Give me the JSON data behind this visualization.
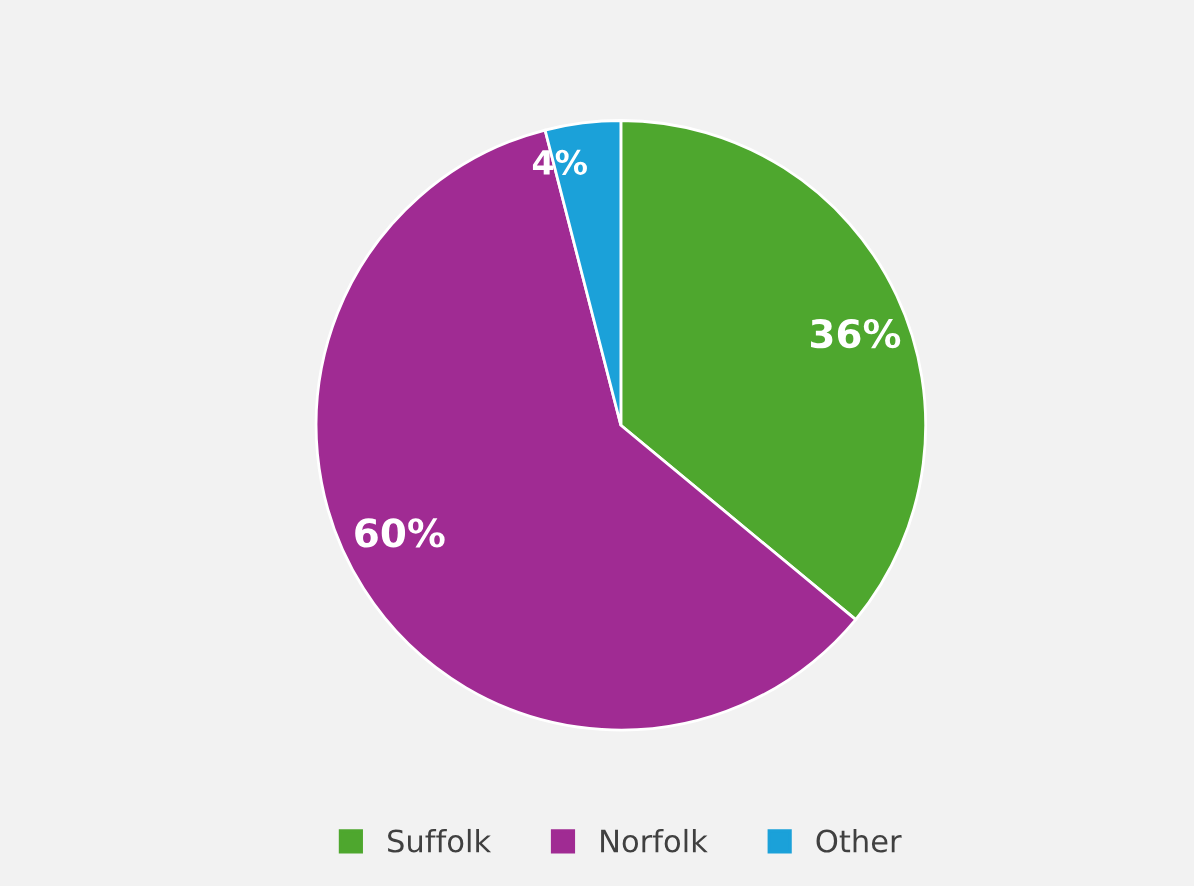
{
  "chart_data": {
    "type": "pie",
    "categories": [
      "Suffolk",
      "Norfolk",
      "Other"
    ],
    "values": [
      36,
      60,
      4
    ],
    "colors": [
      "#4ea72e",
      "#a02b93",
      "#1ba1d9"
    ],
    "value_labels": [
      "36%",
      "60%",
      "4%"
    ],
    "legend": "bottom"
  }
}
